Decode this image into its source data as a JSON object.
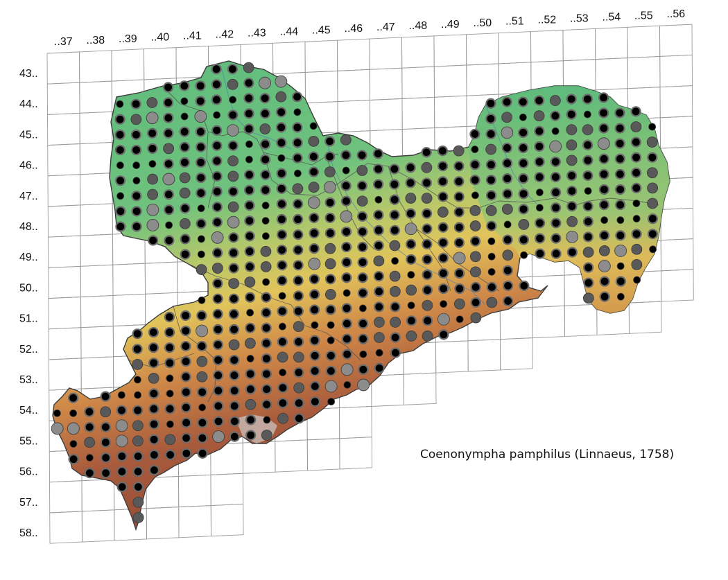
{
  "species_label": "Coenonympha pamphilus (Linnaeus, 1758)",
  "grid": {
    "columns": [
      "..37",
      "..38",
      "..39",
      "..40",
      "..41",
      "..42",
      "..43",
      "..44",
      "..45",
      "..46",
      "..47",
      "..48",
      "..49",
      "..50",
      "..51",
      "..52",
      "..53",
      "..54",
      "..55",
      "..56"
    ],
    "rows": [
      "43..",
      "44..",
      "45..",
      "46..",
      "47..",
      "48..",
      "49..",
      "50..",
      "51..",
      "52..",
      "53..",
      "54..",
      "55..",
      "56..",
      "57..",
      "58.."
    ]
  },
  "colors": {
    "lowland": "#5dbb7d",
    "midland": "#d9c35a",
    "upland": "#a6583b",
    "summit": "#c9c2bf",
    "record_recent": "#000000",
    "record_mid": "#595959",
    "record_old": "#8c8c8c",
    "grid_line": "#9a9a9a"
  },
  "legend_symbols": [
    "black-dot-recent",
    "dark-grey-dot",
    "light-grey-dot"
  ],
  "icons": [
    "distribution-dot"
  ]
}
